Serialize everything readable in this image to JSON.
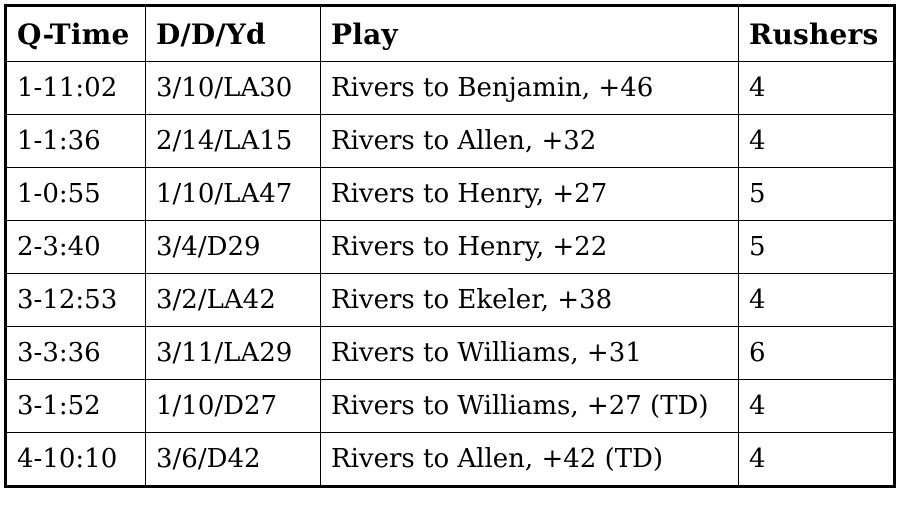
{
  "chart_data": {
    "type": "table",
    "title": "",
    "columns": [
      "Q-Time",
      "D/D/Yd",
      "Play",
      "Rushers"
    ],
    "rows": [
      [
        "1-11:02",
        "3/10/LA30",
        "Rivers to Benjamin, +46",
        "4"
      ],
      [
        "1-1:36",
        "2/14/LA15",
        "Rivers to Allen, +32",
        "4"
      ],
      [
        "1-0:55",
        "1/10/LA47",
        "Rivers to Henry, +27",
        "5"
      ],
      [
        "2-3:40",
        "3/4/D29",
        "Rivers to Henry, +22",
        "5"
      ],
      [
        "3-12:53",
        "3/2/LA42",
        "Rivers to Ekeler, +38",
        "4"
      ],
      [
        "3-3:36",
        "3/11/LA29",
        "Rivers to Williams, +31",
        "6"
      ],
      [
        "3-1:52",
        "1/10/D27",
        "Rivers to Williams, +27 (TD)",
        "4"
      ],
      [
        "4-10:10",
        "3/6/D42",
        "Rivers to Allen, +42 (TD)",
        "4"
      ]
    ]
  },
  "colors": {
    "border": "#000000",
    "text": "#000000",
    "background": "#ffffff"
  }
}
